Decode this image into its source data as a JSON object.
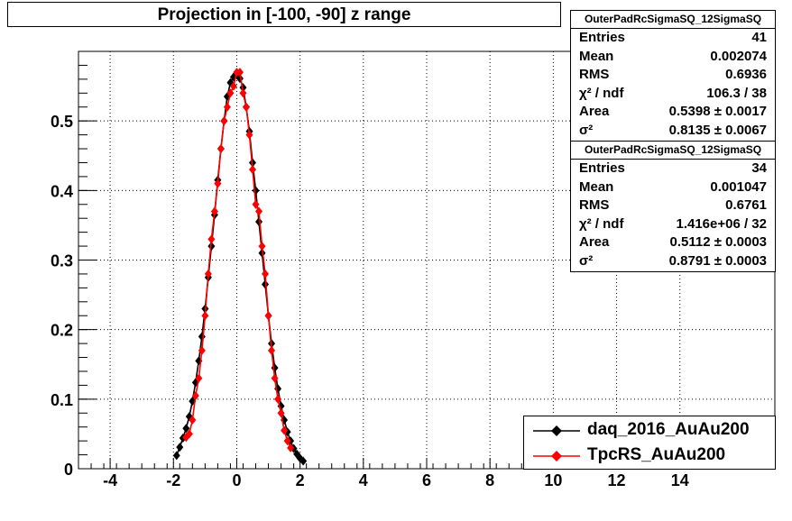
{
  "title": "Projection in [-100, -90] z range",
  "stats": [
    {
      "header": "OuterPadRcSigmaSQ_12SigmaSQ",
      "rows": [
        {
          "label": "Entries",
          "value": "41"
        },
        {
          "label": "Mean",
          "value": "0.002074"
        },
        {
          "label": "RMS",
          "value": "0.6936"
        },
        {
          "label": "χ² / ndf",
          "value": "106.3 / 38"
        },
        {
          "label": "Area",
          "value": "0.5398 ± 0.0017"
        },
        {
          "label": "σ²",
          "value": "0.8135 ± 0.0067"
        }
      ]
    },
    {
      "header": "OuterPadRcSigmaSQ_12SigmaSQ",
      "rows": [
        {
          "label": "Entries",
          "value": "34"
        },
        {
          "label": "Mean",
          "value": "0.001047"
        },
        {
          "label": "RMS",
          "value": "0.6761"
        },
        {
          "label": "χ² / ndf",
          "value": "1.416e+06 / 32"
        },
        {
          "label": "Area",
          "value": "0.5112 ± 0.0003"
        },
        {
          "label": "σ²",
          "value": "0.8791 ± 0.0003"
        }
      ]
    }
  ],
  "legend": [
    {
      "label": "daq_2016_AuAu200",
      "color": "#000000"
    },
    {
      "label": "TpcRS_AuAu200",
      "color": "#ff0000"
    }
  ],
  "chart_data": {
    "type": "scatter",
    "title": "Projection in [-100, -90] z range",
    "xlabel": "",
    "ylabel": "",
    "xlim": [
      -5,
      17
    ],
    "ylim": [
      0,
      0.6
    ],
    "x_ticks": [
      -4,
      -2,
      0,
      2,
      4,
      6,
      8,
      10,
      12,
      14
    ],
    "y_ticks": [
      0,
      0.1,
      0.2,
      0.3,
      0.4,
      0.5
    ],
    "grid": true,
    "legend_position": "bottom-right",
    "series": [
      {
        "name": "daq_2016_AuAu200",
        "color": "#000000",
        "x": [
          -1.9,
          -1.8,
          -1.7,
          -1.6,
          -1.5,
          -1.4,
          -1.3,
          -1.2,
          -1.1,
          -1.0,
          -0.9,
          -0.8,
          -0.7,
          -0.6,
          -0.5,
          -0.4,
          -0.3,
          -0.2,
          -0.1,
          0.0,
          0.1,
          0.2,
          0.3,
          0.4,
          0.5,
          0.6,
          0.7,
          0.8,
          0.9,
          1.0,
          1.1,
          1.2,
          1.3,
          1.4,
          1.5,
          1.6,
          1.7,
          1.8,
          1.9,
          2.0,
          2.1
        ],
        "y": [
          0.019,
          0.031,
          0.044,
          0.058,
          0.075,
          0.097,
          0.124,
          0.155,
          0.19,
          0.23,
          0.275,
          0.32,
          0.365,
          0.415,
          0.46,
          0.5,
          0.535,
          0.555,
          0.563,
          0.566,
          0.561,
          0.548,
          0.52,
          0.485,
          0.44,
          0.4,
          0.355,
          0.31,
          0.265,
          0.22,
          0.18,
          0.145,
          0.115,
          0.09,
          0.07,
          0.053,
          0.04,
          0.029,
          0.021,
          0.015,
          0.011
        ]
      },
      {
        "name": "TpcRS_AuAu200",
        "color": "#ff0000",
        "x": [
          -1.6,
          -1.5,
          -1.4,
          -1.3,
          -1.2,
          -1.1,
          -1.0,
          -0.9,
          -0.8,
          -0.7,
          -0.6,
          -0.5,
          -0.4,
          -0.3,
          -0.2,
          -0.1,
          0.0,
          0.1,
          0.2,
          0.3,
          0.4,
          0.5,
          0.6,
          0.7,
          0.8,
          0.9,
          1.0,
          1.1,
          1.2,
          1.3,
          1.4,
          1.5,
          1.6,
          1.7
        ],
        "y": [
          0.045,
          0.05,
          0.07,
          0.105,
          0.13,
          0.17,
          0.22,
          0.28,
          0.33,
          0.37,
          0.41,
          0.46,
          0.5,
          0.52,
          0.54,
          0.55,
          0.57,
          0.57,
          0.54,
          0.52,
          0.48,
          0.43,
          0.38,
          0.37,
          0.32,
          0.28,
          0.22,
          0.17,
          0.13,
          0.1,
          0.08,
          0.055,
          0.04,
          0.03
        ]
      }
    ]
  }
}
